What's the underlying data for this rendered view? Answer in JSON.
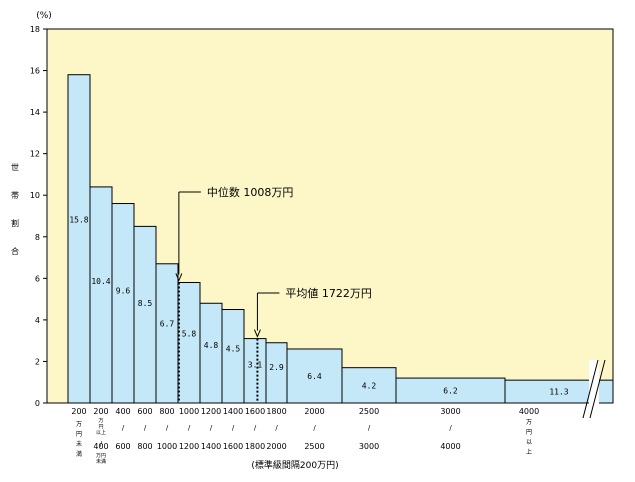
{
  "chart_data": {
    "type": "bar",
    "y_unit_label": "(%)",
    "ylabel": "世帯割合",
    "xlabel_note": "(標準級間隔200万円)",
    "ylim": [
      0,
      18
    ],
    "yticks": [
      0,
      2,
      4,
      6,
      8,
      10,
      12,
      14,
      16,
      18
    ],
    "plot_background": "#fdf7c8",
    "bar_fill": "#c5e8f8",
    "bars": [
      {
        "from": 0,
        "to": 200,
        "value": 15.8,
        "label": "15.8"
      },
      {
        "from": 200,
        "to": 400,
        "value": 10.4,
        "label": "10.4"
      },
      {
        "from": 400,
        "to": 600,
        "value": 9.6,
        "label": "9.6"
      },
      {
        "from": 600,
        "to": 800,
        "value": 8.5,
        "label": "8.5"
      },
      {
        "from": 800,
        "to": 1000,
        "value": 6.7,
        "label": "6.7"
      },
      {
        "from": 1000,
        "to": 1200,
        "value": 5.8,
        "label": "5.8"
      },
      {
        "from": 1200,
        "to": 1400,
        "value": 4.8,
        "label": "4.8"
      },
      {
        "from": 1400,
        "to": 1600,
        "value": 4.5,
        "label": "4.5"
      },
      {
        "from": 1600,
        "to": 1800,
        "value": 3.1,
        "label": "3.1"
      },
      {
        "from": 1800,
        "to": 2000,
        "value": 2.9,
        "label": "2.9"
      },
      {
        "from": 2000,
        "to": 2500,
        "value": 2.6,
        "label": "6.4"
      },
      {
        "from": 2500,
        "to": 3000,
        "value": 1.7,
        "label": "4.2"
      },
      {
        "from": 3000,
        "to": 4000,
        "value": 1.2,
        "label": "6.2"
      },
      {
        "from": 4000,
        "to": null,
        "value": 1.1,
        "label": "11.3"
      }
    ],
    "x_top_labels": [
      "200",
      "200",
      "400",
      "600",
      "800",
      "1000",
      "1200",
      "1400",
      "1600",
      "1800",
      "2000",
      "2500",
      "3000",
      "4000"
    ],
    "x_bottom_labels": [
      "",
      "400",
      "600",
      "800",
      "1000",
      "1200",
      "1400",
      "1600",
      "1800",
      "2000",
      "2500",
      "3000",
      "4000",
      ""
    ],
    "x_unit_notes": {
      "first": [
        "万",
        "円",
        "未",
        "満"
      ],
      "second_top": [
        "万",
        "円",
        "以上"
      ],
      "second_bottom": [
        "万円",
        "未満"
      ],
      "last": [
        "万",
        "円",
        "以",
        "上"
      ]
    },
    "annotations": [
      {
        "text": "中位数 1008万円",
        "x": 1008
      },
      {
        "text": "平均値 1722万円",
        "x": 1722
      }
    ]
  }
}
